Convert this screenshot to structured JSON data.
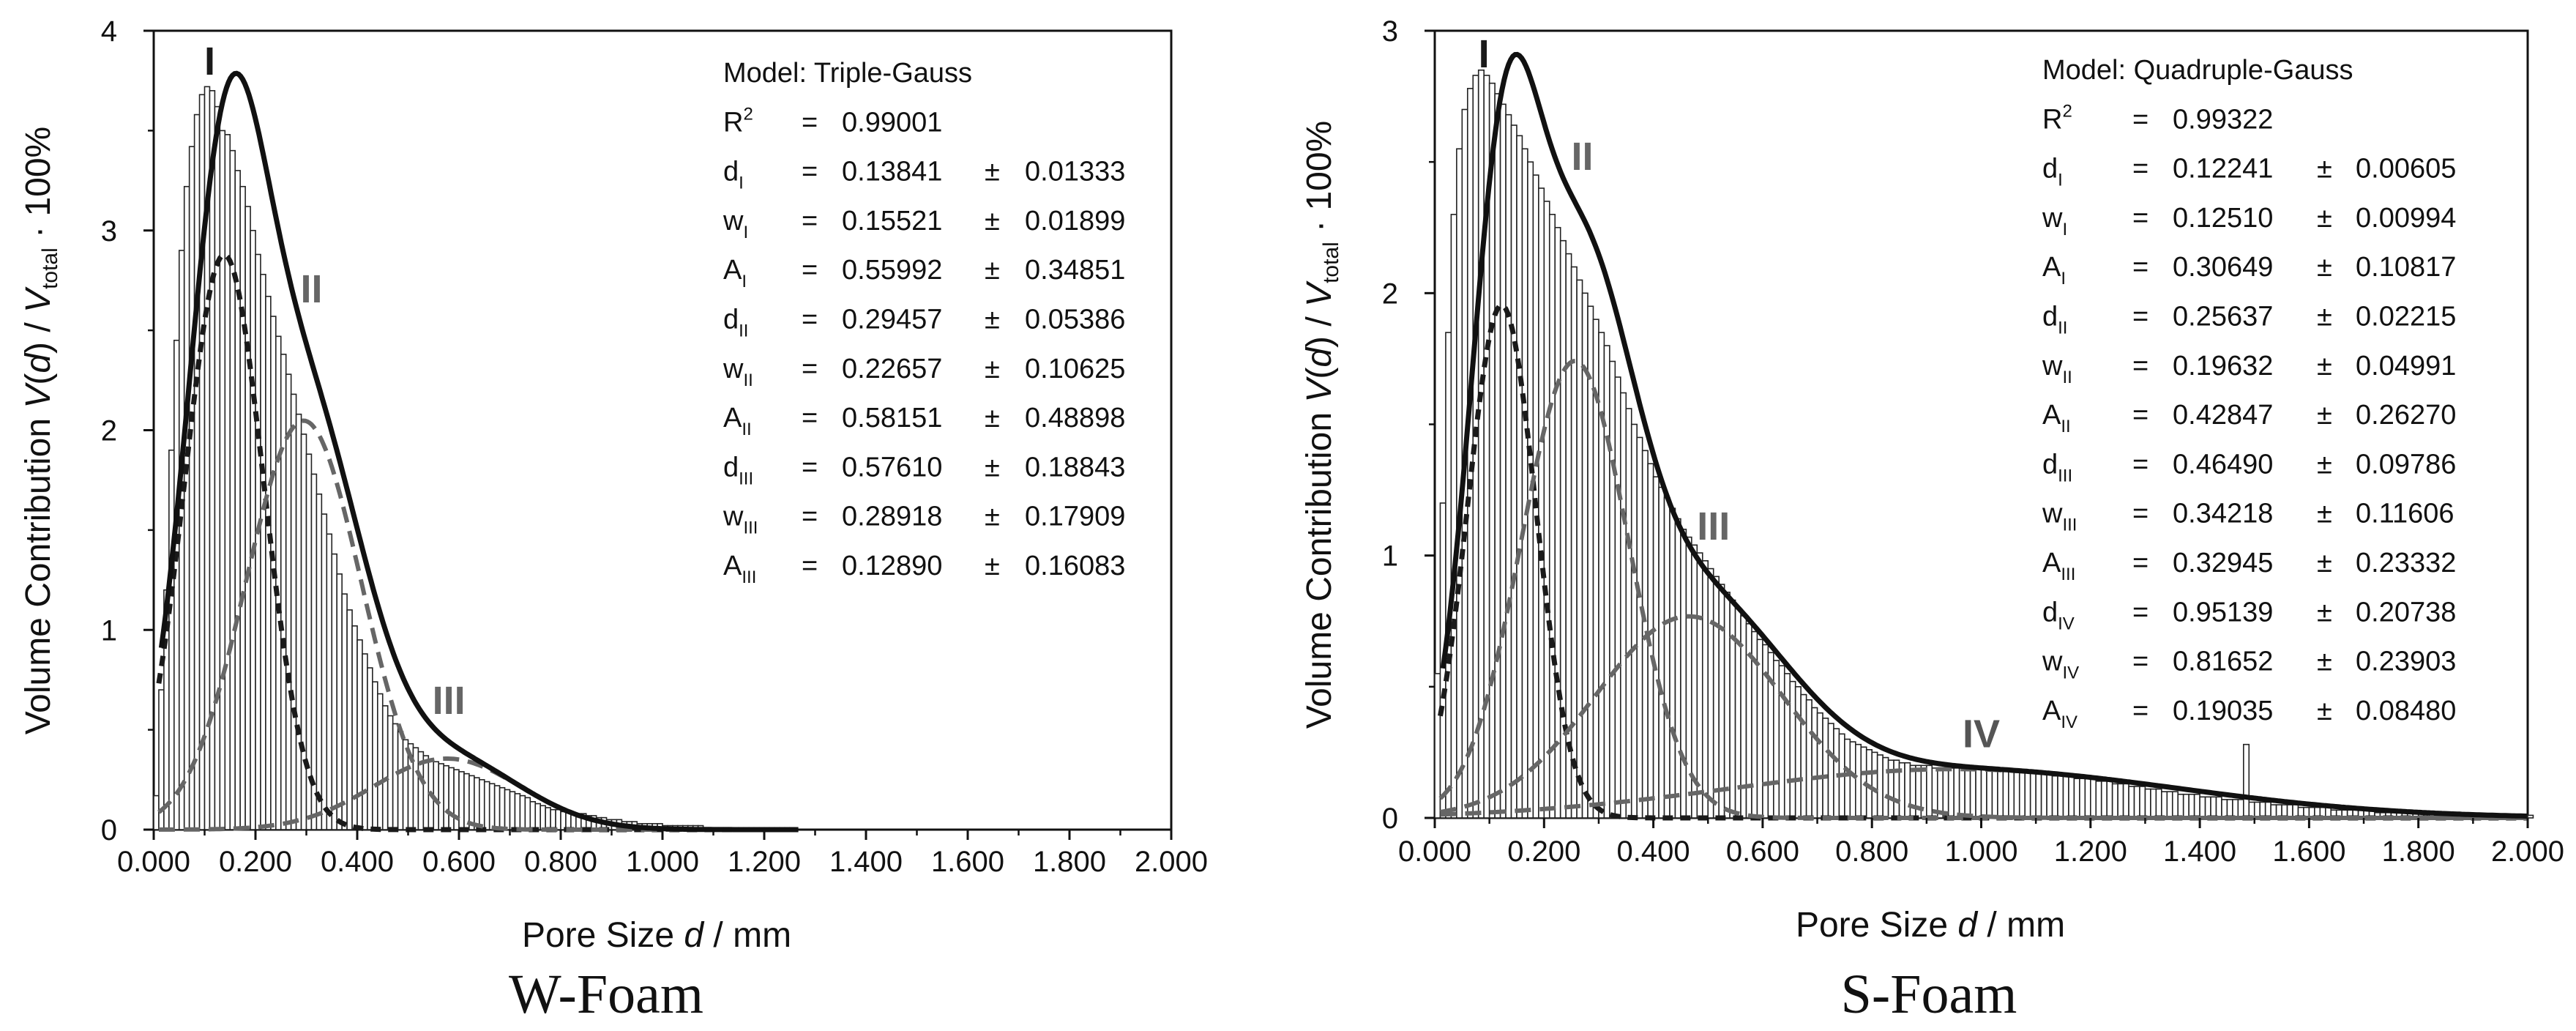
{
  "chart_data": [
    {
      "type": "bar",
      "title": "W-Foam",
      "caption": "W-Foam",
      "xlabel": {
        "pre": "Pore Size ",
        "var": "d",
        "post": " / mm"
      },
      "ylabel": {
        "pre": "Volume Contribution ",
        "var": "V",
        "mid1": "(",
        "var2": "d",
        "mid2": ") / ",
        "var3": "V",
        "sub": "total",
        "post": " · 100%"
      },
      "xlim": [
        0,
        2.0
      ],
      "ylim": [
        0,
        4
      ],
      "xticks": [
        "0.000",
        "0.200",
        "0.400",
        "0.600",
        "0.800",
        "1.000",
        "1.200",
        "1.400",
        "1.600",
        "1.800",
        "2.000"
      ],
      "yticks": [
        "0",
        "1",
        "2",
        "3",
        "4"
      ],
      "bin_width": 0.01,
      "bar_x_start": 0.005,
      "bar_values": [
        0.17,
        0.7,
        1.2,
        1.9,
        2.45,
        2.9,
        3.22,
        3.42,
        3.58,
        3.68,
        3.72,
        3.7,
        3.62,
        3.5,
        3.48,
        3.4,
        3.3,
        3.22,
        3.12,
        3.0,
        2.88,
        2.78,
        2.67,
        2.57,
        2.47,
        2.38,
        2.28,
        2.18,
        2.08,
        1.98,
        1.88,
        1.78,
        1.68,
        1.58,
        1.48,
        1.38,
        1.28,
        1.18,
        1.1,
        1.02,
        0.95,
        0.88,
        0.81,
        0.74,
        0.68,
        0.62,
        0.57,
        0.53,
        0.49,
        0.45,
        0.43,
        0.41,
        0.39,
        0.37,
        0.35,
        0.34,
        0.33,
        0.32,
        0.31,
        0.3,
        0.29,
        0.28,
        0.27,
        0.26,
        0.25,
        0.24,
        0.23,
        0.22,
        0.21,
        0.2,
        0.19,
        0.18,
        0.17,
        0.16,
        0.14,
        0.13,
        0.12,
        0.11,
        0.1,
        0.1,
        0.09,
        0.09,
        0.08,
        0.08,
        0.08,
        0.07,
        0.07,
        0.06,
        0.06,
        0.05,
        0.05,
        0.05,
        0.04,
        0.04,
        0.04,
        0.03,
        0.03,
        0.03,
        0.03,
        0.03,
        0.02,
        0.02,
        0.02,
        0.02,
        0.02,
        0.02,
        0.02,
        0.02,
        0.01,
        0.01,
        0.01,
        0.01,
        0.01,
        0.01,
        0.01,
        0.01,
        0.01,
        0.01,
        0.01,
        0.01,
        0.01,
        0.01,
        0.01,
        0.01,
        0.01,
        0.01
      ],
      "model_label": "Model: Triple-Gauss",
      "r2": {
        "label": "R",
        "sup": "2",
        "eq": "=",
        "value": "0.99001"
      },
      "params": [
        {
          "sym": "d",
          "sub": "I",
          "eq": "=",
          "value": "0.13841",
          "pm": "±",
          "err": "0.01333"
        },
        {
          "sym": "w",
          "sub": "I",
          "eq": "=",
          "value": "0.15521",
          "pm": "±",
          "err": "0.01899"
        },
        {
          "sym": "A",
          "sub": "I",
          "eq": "=",
          "value": "0.55992",
          "pm": "±",
          "err": "0.34851"
        },
        {
          "sym": "d",
          "sub": "II",
          "eq": "=",
          "value": "0.29457",
          "pm": "±",
          "err": "0.05386"
        },
        {
          "sym": "w",
          "sub": "II",
          "eq": "=",
          "value": "0.22657",
          "pm": "±",
          "err": "0.10625"
        },
        {
          "sym": "A",
          "sub": "II",
          "eq": "=",
          "value": "0.58151",
          "pm": "±",
          "err": "0.48898"
        },
        {
          "sym": "d",
          "sub": "III",
          "eq": "=",
          "value": "0.57610",
          "pm": "±",
          "err": "0.18843"
        },
        {
          "sym": "w",
          "sub": "III",
          "eq": "=",
          "value": "0.28918",
          "pm": "±",
          "err": "0.17909"
        },
        {
          "sym": "A",
          "sub": "III",
          "eq": "=",
          "value": "0.12890",
          "pm": "±",
          "err": "0.16083"
        }
      ],
      "components": [
        {
          "name": "I",
          "d": 0.13841,
          "w": 0.15521,
          "A": 0.55992,
          "color": "#1a1a1a",
          "label_x": 0.11,
          "label_y": 3.78,
          "label_color": "#1a1a1a"
        },
        {
          "name": "II",
          "d": 0.29457,
          "w": 0.22657,
          "A": 0.58151,
          "color": "#666666",
          "label_x": 0.31,
          "label_y": 2.64,
          "label_color": "#666666"
        },
        {
          "name": "III",
          "d": 0.5761,
          "w": 0.28918,
          "A": 0.1289,
          "color": "#666666",
          "label_x": 0.58,
          "label_y": 0.58,
          "label_color": "#666666"
        }
      ],
      "curve_range": [
        0.0,
        1.27
      ],
      "colors": {
        "total": "#111111",
        "component_first": "#1a1a1a",
        "component_other": "#666666"
      }
    },
    {
      "type": "bar",
      "title": "S-Foam",
      "caption": "S-Foam",
      "xlabel": {
        "pre": "Pore Size ",
        "var": "d",
        "post": " / mm"
      },
      "ylabel": {
        "pre": "Volume Contribution ",
        "var": "V",
        "mid1": "(",
        "var2": "d",
        "mid2": ") / ",
        "var3": "V",
        "sub": "total",
        "post": " · 100%"
      },
      "xlim": [
        0,
        2.0
      ],
      "ylim": [
        0,
        3
      ],
      "xticks": [
        "0.000",
        "0.200",
        "0.400",
        "0.600",
        "0.800",
        "1.000",
        "1.200",
        "1.400",
        "1.600",
        "1.800",
        "2.000"
      ],
      "yticks": [
        "0",
        "1",
        "2",
        "3"
      ],
      "bin_width": 0.01,
      "bar_x_start": 0.005,
      "bar_values": [
        0.55,
        1.2,
        1.85,
        2.3,
        2.55,
        2.7,
        2.78,
        2.83,
        2.85,
        2.83,
        2.8,
        2.76,
        2.72,
        2.68,
        2.64,
        2.6,
        2.55,
        2.5,
        2.45,
        2.4,
        2.35,
        2.3,
        2.25,
        2.2,
        2.15,
        2.1,
        2.05,
        2.0,
        1.95,
        1.9,
        1.85,
        1.8,
        1.74,
        1.68,
        1.62,
        1.56,
        1.5,
        1.45,
        1.4,
        1.35,
        1.3,
        1.26,
        1.22,
        1.18,
        1.14,
        1.1,
        1.07,
        1.04,
        1.01,
        0.98,
        0.95,
        0.92,
        0.89,
        0.86,
        0.83,
        0.8,
        0.77,
        0.74,
        0.71,
        0.68,
        0.66,
        0.63,
        0.6,
        0.58,
        0.55,
        0.52,
        0.5,
        0.47,
        0.45,
        0.42,
        0.4,
        0.38,
        0.36,
        0.34,
        0.32,
        0.3,
        0.29,
        0.28,
        0.27,
        0.26,
        0.25,
        0.24,
        0.23,
        0.22,
        0.22,
        0.21,
        0.21,
        0.2,
        0.2,
        0.2,
        0.2,
        0.19,
        0.19,
        0.19,
        0.19,
        0.19,
        0.19,
        0.19,
        0.19,
        0.19,
        0.19,
        0.19,
        0.18,
        0.18,
        0.18,
        0.18,
        0.18,
        0.18,
        0.18,
        0.17,
        0.17,
        0.17,
        0.17,
        0.16,
        0.16,
        0.16,
        0.16,
        0.15,
        0.15,
        0.15,
        0.15,
        0.14,
        0.14,
        0.14,
        0.13,
        0.13,
        0.13,
        0.12,
        0.12,
        0.12,
        0.11,
        0.11,
        0.11,
        0.1,
        0.1,
        0.1,
        0.09,
        0.09,
        0.09,
        0.09,
        0.08,
        0.08,
        0.08,
        0.08,
        0.07,
        0.07,
        0.07,
        0.07,
        0.28,
        0.06,
        0.06,
        0.06,
        0.06,
        0.05,
        0.05,
        0.05,
        0.05,
        0.05,
        0.04,
        0.04,
        0.04,
        0.04,
        0.04,
        0.04,
        0.03,
        0.03,
        0.03,
        0.03,
        0.03,
        0.03,
        0.03,
        0.03,
        0.02,
        0.02,
        0.02,
        0.02,
        0.02,
        0.02,
        0.02,
        0.02,
        0.02,
        0.02,
        0.02,
        0.02,
        0.02,
        0.02,
        0.02,
        0.02,
        0.02,
        0.01,
        0.01,
        0.01,
        0.01,
        0.01,
        0.01,
        0.01,
        0.01,
        0.01,
        0.01,
        0.01,
        0.01
      ],
      "model_label": "Model: Quadruple-Gauss",
      "r2": {
        "label": "R",
        "sup": "2",
        "eq": "=",
        "value": "0.99322"
      },
      "params": [
        {
          "sym": "d",
          "sub": "I",
          "eq": "=",
          "value": "0.12241",
          "pm": "±",
          "err": "0.00605"
        },
        {
          "sym": "w",
          "sub": "I",
          "eq": "=",
          "value": "0.12510",
          "pm": "±",
          "err": "0.00994"
        },
        {
          "sym": "A",
          "sub": "I",
          "eq": "=",
          "value": "0.30649",
          "pm": "±",
          "err": "0.10817"
        },
        {
          "sym": "d",
          "sub": "II",
          "eq": "=",
          "value": "0.25637",
          "pm": "±",
          "err": "0.02215"
        },
        {
          "sym": "w",
          "sub": "II",
          "eq": "=",
          "value": "0.19632",
          "pm": "±",
          "err": "0.04991"
        },
        {
          "sym": "A",
          "sub": "II",
          "eq": "=",
          "value": "0.42847",
          "pm": "±",
          "err": "0.26270"
        },
        {
          "sym": "d",
          "sub": "III",
          "eq": "=",
          "value": "0.46490",
          "pm": "±",
          "err": "0.09786"
        },
        {
          "sym": "w",
          "sub": "III",
          "eq": "=",
          "value": "0.34218",
          "pm": "±",
          "err": "0.11606"
        },
        {
          "sym": "A",
          "sub": "III",
          "eq": "=",
          "value": "0.32945",
          "pm": "±",
          "err": "0.23332"
        },
        {
          "sym": "d",
          "sub": "IV",
          "eq": "=",
          "value": "0.95139",
          "pm": "±",
          "err": "0.20738"
        },
        {
          "sym": "w",
          "sub": "IV",
          "eq": "=",
          "value": "0.81652",
          "pm": "±",
          "err": "0.23903"
        },
        {
          "sym": "A",
          "sub": "IV",
          "eq": "=",
          "value": "0.19035",
          "pm": "±",
          "err": "0.08480"
        }
      ],
      "components": [
        {
          "name": "I",
          "d": 0.12241,
          "w": 0.1251,
          "A": 0.30649,
          "color": "#1a1a1a",
          "label_x": 0.09,
          "label_y": 2.86,
          "label_color": "#1a1a1a"
        },
        {
          "name": "II",
          "d": 0.25637,
          "w": 0.19632,
          "A": 0.42847,
          "color": "#666666",
          "label_x": 0.27,
          "label_y": 2.47,
          "label_color": "#666666"
        },
        {
          "name": "III",
          "d": 0.4649,
          "w": 0.34218,
          "A": 0.32945,
          "color": "#666666",
          "label_x": 0.51,
          "label_y": 1.06,
          "label_color": "#666666"
        },
        {
          "name": "IV",
          "d": 0.95139,
          "w": 0.81652,
          "A": 0.19035,
          "color": "#666666",
          "label_x": 1.0,
          "label_y": 0.27,
          "label_color": "#555555"
        }
      ],
      "curve_range": [
        0.0,
        2.0
      ],
      "colors": {
        "total": "#111111",
        "component_first": "#1a1a1a",
        "component_other": "#666666"
      }
    }
  ]
}
